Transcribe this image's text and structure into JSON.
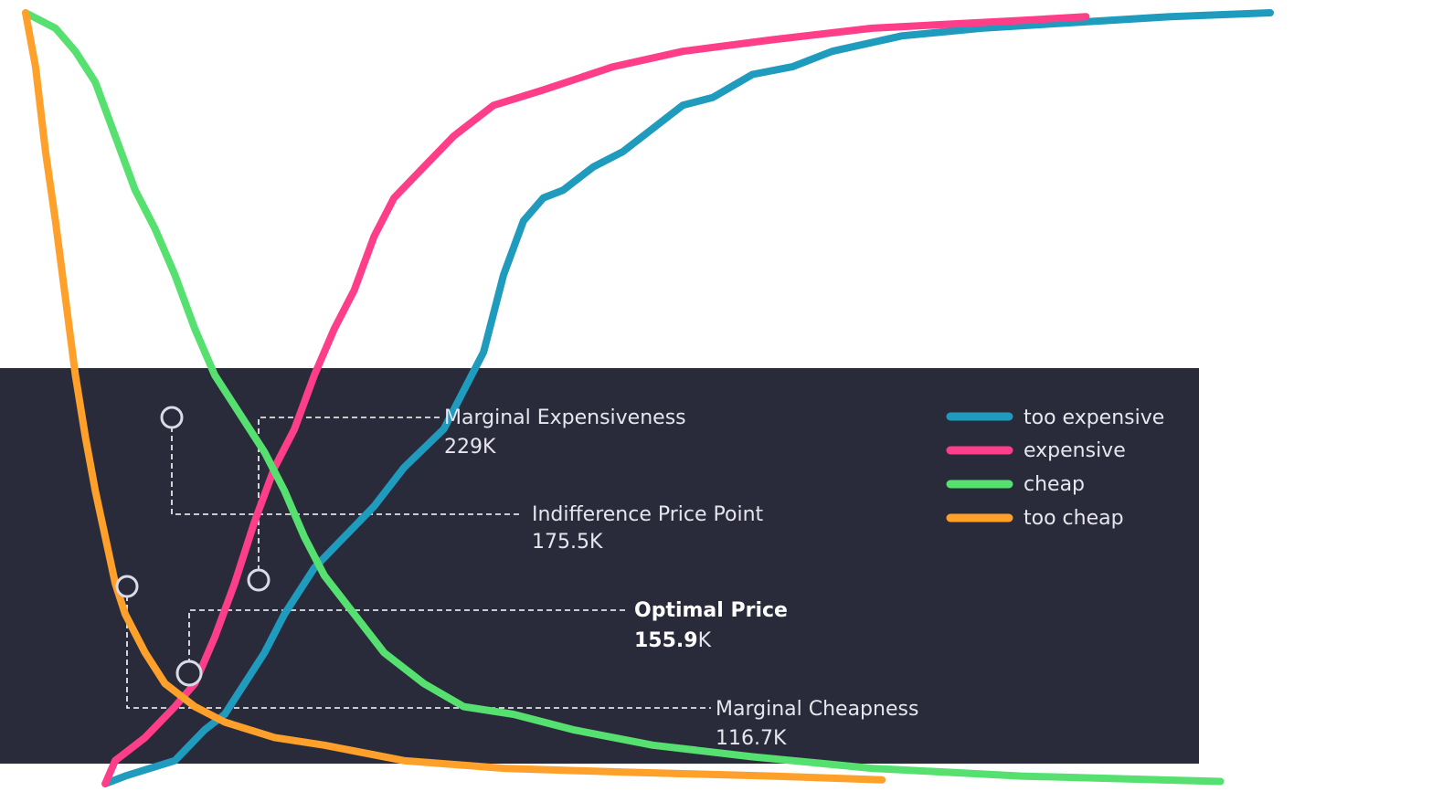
{
  "chart_data": {
    "type": "line",
    "series": [
      {
        "name": "too expensive",
        "color": "#1e9bbd",
        "points": [
          [
            96,
            0.0
          ],
          [
            100,
            0.01
          ],
          [
            110,
            0.03
          ],
          [
            116,
            0.07
          ],
          [
            120,
            0.09
          ],
          [
            124,
            0.13
          ],
          [
            128,
            0.17
          ],
          [
            132,
            0.22
          ],
          [
            138,
            0.28
          ],
          [
            144,
            0.32
          ],
          [
            150,
            0.36
          ],
          [
            156,
            0.41
          ],
          [
            164,
            0.46
          ],
          [
            168,
            0.51
          ],
          [
            172,
            0.56
          ],
          [
            176,
            0.66
          ],
          [
            180,
            0.73
          ],
          [
            184,
            0.76
          ],
          [
            188,
            0.77
          ],
          [
            194,
            0.8
          ],
          [
            200,
            0.82
          ],
          [
            206,
            0.85
          ],
          [
            212,
            0.88
          ],
          [
            218,
            0.89
          ],
          [
            226,
            0.92
          ],
          [
            234,
            0.93
          ],
          [
            242,
            0.95
          ],
          [
            256,
            0.97
          ],
          [
            272,
            0.98
          ],
          [
            310,
            0.995
          ],
          [
            330,
            1.0
          ]
        ]
      },
      {
        "name": "expensive",
        "color": "#ff3e8a",
        "points": [
          [
            96,
            0.0
          ],
          [
            98,
            0.03
          ],
          [
            104,
            0.06
          ],
          [
            110,
            0.1
          ],
          [
            114,
            0.13
          ],
          [
            118,
            0.19
          ],
          [
            122,
            0.26
          ],
          [
            126,
            0.34
          ],
          [
            130,
            0.41
          ],
          [
            134,
            0.46
          ],
          [
            138,
            0.53
          ],
          [
            142,
            0.59
          ],
          [
            146,
            0.64
          ],
          [
            150,
            0.71
          ],
          [
            154,
            0.76
          ],
          [
            160,
            0.8
          ],
          [
            166,
            0.84
          ],
          [
            174,
            0.88
          ],
          [
            184,
            0.9
          ],
          [
            198,
            0.93
          ],
          [
            212,
            0.95
          ],
          [
            230,
            0.965
          ],
          [
            250,
            0.98
          ],
          [
            280,
            0.99
          ],
          [
            293,
            0.995
          ]
        ]
      },
      {
        "name": "cheap",
        "color": "#55e070",
        "points": [
          [
            80,
            1.0
          ],
          [
            86,
            0.98
          ],
          [
            90,
            0.95
          ],
          [
            94,
            0.91
          ],
          [
            98,
            0.84
          ],
          [
            102,
            0.77
          ],
          [
            106,
            0.72
          ],
          [
            110,
            0.66
          ],
          [
            114,
            0.59
          ],
          [
            118,
            0.53
          ],
          [
            124,
            0.47
          ],
          [
            128,
            0.43
          ],
          [
            132,
            0.38
          ],
          [
            136,
            0.32
          ],
          [
            140,
            0.27
          ],
          [
            146,
            0.22
          ],
          [
            152,
            0.17
          ],
          [
            160,
            0.13
          ],
          [
            168,
            0.1
          ],
          [
            178,
            0.09
          ],
          [
            190,
            0.07
          ],
          [
            206,
            0.05
          ],
          [
            226,
            0.035
          ],
          [
            250,
            0.02
          ],
          [
            280,
            0.01
          ],
          [
            320,
            0.003
          ]
        ]
      },
      {
        "name": "too cheap",
        "color": "#ffa02a",
        "points": [
          [
            80,
            1.0
          ],
          [
            82,
            0.93
          ],
          [
            84,
            0.82
          ],
          [
            86,
            0.73
          ],
          [
            88,
            0.63
          ],
          [
            90,
            0.53
          ],
          [
            92,
            0.45
          ],
          [
            94,
            0.38
          ],
          [
            96,
            0.32
          ],
          [
            98,
            0.26
          ],
          [
            100,
            0.22
          ],
          [
            104,
            0.17
          ],
          [
            108,
            0.13
          ],
          [
            114,
            0.1
          ],
          [
            120,
            0.08
          ],
          [
            130,
            0.06
          ],
          [
            140,
            0.05
          ],
          [
            156,
            0.03
          ],
          [
            176,
            0.02
          ],
          [
            200,
            0.015
          ],
          [
            230,
            0.01
          ],
          [
            252,
            0.005
          ]
        ]
      }
    ],
    "annotations": [
      {
        "title": "Marginal Expensiveness",
        "value": "229K"
      },
      {
        "title": "Indifference Price Point",
        "value": "175.5K"
      },
      {
        "title": "Optimal Price",
        "value_bold": "155.9",
        "value_suffix": "K"
      },
      {
        "title": "Marginal Cheapness",
        "value": "116.7K"
      }
    ],
    "legend_position": "right",
    "grid": false
  },
  "colors": {
    "panel": "#2a2b3a",
    "leader": "#ffffff",
    "marker_fill": "#2a2b3a",
    "marker_stroke": "#d9dbe6"
  }
}
